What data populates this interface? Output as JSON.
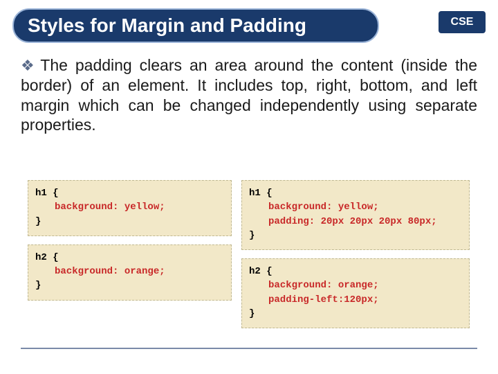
{
  "header": {
    "title": "Styles for Margin and Padding",
    "badge": "CSE",
    "title_bg": "#1a3a6b",
    "title_border": "#9bb4d8",
    "title_color": "#ffffff"
  },
  "paragraph": {
    "bullet": "❖",
    "text": "The padding clears an area around the content (inside the border) of an element. It includes top, right, bottom, and left margin which can be changed independently using separate properties.",
    "text_color": "#1a1a1a",
    "bullet_color": "#5a6b8a"
  },
  "code": {
    "block_bg": "#f2e8c8",
    "block_border": "#c0b890",
    "prop_color": "#c82828",
    "left": [
      {
        "selector": "h1 {",
        "props": [
          "background: yellow;"
        ],
        "close": "}"
      },
      {
        "selector": "h2 {",
        "props": [
          "background: orange;"
        ],
        "close": "}"
      }
    ],
    "right": [
      {
        "selector": "h1 {",
        "props": [
          "background: yellow;",
          "padding: 20px 20px 20px 80px;"
        ],
        "close": "}"
      },
      {
        "selector": "h2 {",
        "props": [
          "background: orange;",
          "padding-left:120px;"
        ],
        "close": "}"
      }
    ]
  },
  "footer": {
    "rule_color": "#7a8aa8"
  }
}
